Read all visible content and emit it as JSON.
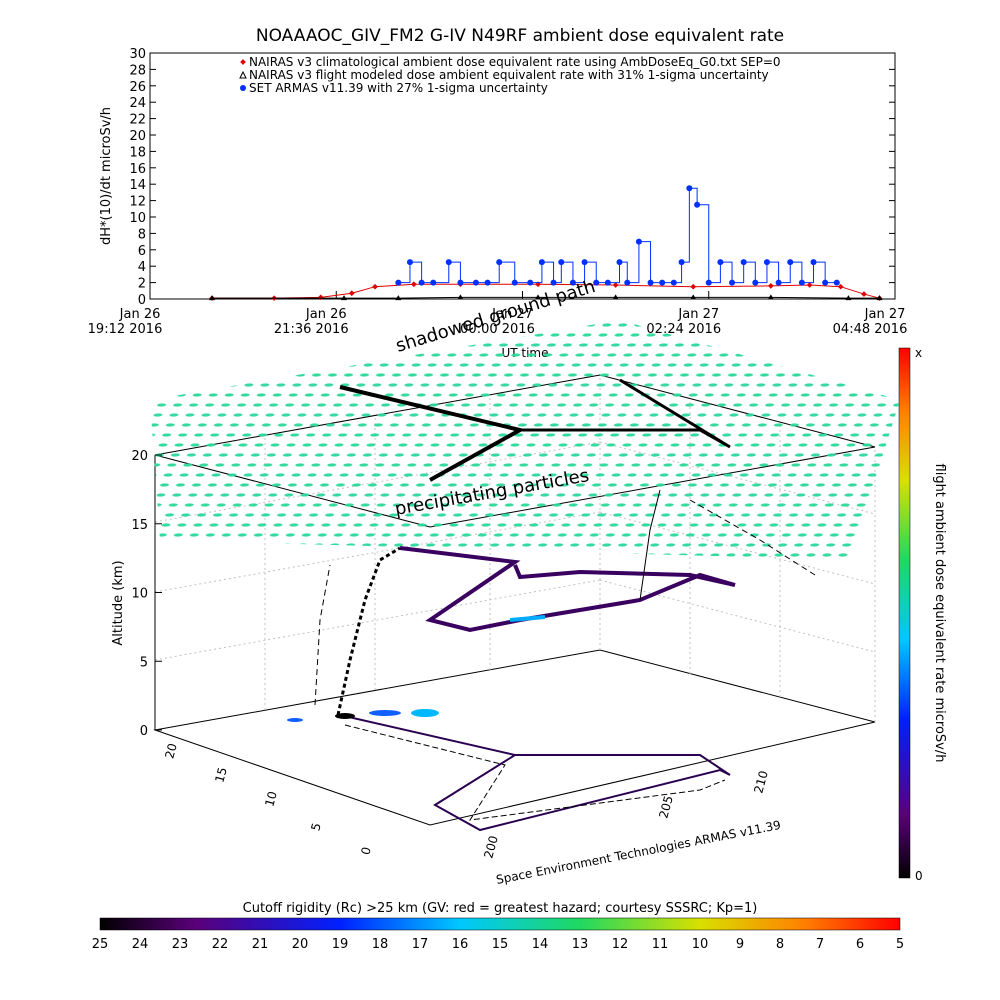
{
  "chart_data": [
    {
      "type": "line",
      "title": "NOAAAOC_GIV_FM2 G-IV    N49RF  ambient dose equivalent rate",
      "xlabel": "UT time",
      "ylabel": "dH*(10)/dt microSv/h",
      "ylim": [
        0,
        30
      ],
      "yticks": [
        0,
        2,
        4,
        6,
        8,
        10,
        12,
        14,
        16,
        18,
        20,
        22,
        24,
        26,
        28,
        30
      ],
      "xticks": [
        {
          "date": "Jan 26",
          "time": "19:12 2016"
        },
        {
          "date": "Jan 26",
          "time": "21:36 2016"
        },
        {
          "date": "Jan 27",
          "time": "00:00 2016"
        },
        {
          "date": "Jan 27",
          "time": "02:24 2016"
        },
        {
          "date": "Jan 27",
          "time": "04:48 2016"
        }
      ],
      "x_unit": "hours since Jan 26 19:12",
      "legend_position": "top-center",
      "series": [
        {
          "name": "NAIRAS v3 climatological ambient dose equivalent rate using AmbDoseEq_G0.txt SEP=0",
          "color": "#e00000",
          "marker": "diamond",
          "x": [
            0.8,
            1.6,
            2.2,
            2.6,
            2.9,
            3.4,
            4.0,
            5.0,
            6.0,
            7.0,
            8.0,
            8.5,
            8.9,
            9.2,
            9.4
          ],
          "values": [
            0.1,
            0.1,
            0.2,
            0.7,
            1.5,
            1.8,
            1.8,
            1.8,
            1.7,
            1.5,
            1.6,
            1.7,
            1.5,
            0.6,
            0.1
          ]
        },
        {
          "name": "NAIRAS v3 flight modeled dose ambient equivalent rate with 31% 1-sigma uncertainty",
          "color": "#000000",
          "marker": "triangle",
          "x": [
            0.8,
            2.5,
            3.2,
            4.0,
            5.0,
            6.0,
            7.0,
            8.0,
            9.0,
            9.4
          ],
          "values": [
            0.1,
            0.1,
            0.1,
            0.2,
            0.2,
            0.2,
            0.2,
            0.2,
            0.1,
            0.1
          ]
        },
        {
          "name": "SET ARMAS v11.39 with 27% 1-sigma uncertainty",
          "color": "#0030ff",
          "marker": "circle",
          "x": [
            3.2,
            3.35,
            3.5,
            3.65,
            3.85,
            4.0,
            4.2,
            4.35,
            4.5,
            4.7,
            4.9,
            5.05,
            5.2,
            5.3,
            5.45,
            5.6,
            5.75,
            5.9,
            6.05,
            6.15,
            6.3,
            6.45,
            6.6,
            6.75,
            6.85,
            6.95,
            7.05,
            7.2,
            7.35,
            7.5,
            7.65,
            7.8,
            7.95,
            8.1,
            8.25,
            8.4,
            8.55,
            8.7,
            8.85
          ],
          "values": [
            2,
            4.5,
            2,
            2,
            4.5,
            2,
            2,
            2,
            4.5,
            2,
            2,
            4.5,
            2,
            4.5,
            2,
            4.5,
            2,
            2,
            4.5,
            2,
            7,
            2,
            2,
            2,
            4.5,
            13.5,
            11.5,
            2,
            4.5,
            2,
            4.5,
            2,
            4.5,
            2,
            4.5,
            2,
            4.5,
            2,
            2
          ]
        }
      ]
    },
    {
      "type": "scatter",
      "subtype": "3d-flight-track",
      "zlabel": "Altitude (km)",
      "zticks": [
        0,
        5,
        10,
        15,
        20
      ],
      "xticks": [
        200,
        205,
        210
      ],
      "yticks": [
        0,
        5,
        10,
        15,
        20
      ],
      "credit": "Space Environment Technologies ARMAS v11.39",
      "annotations": [
        "shadowed ground path",
        "precipitating particles"
      ],
      "colorbar_right": {
        "label": "flight ambient dose equivalent rate microSv/h",
        "top_label": "x",
        "bottom_label": "0"
      },
      "colorbar_bottom": {
        "label": "Cutoff rigidity (Rc) >25 km (GV: red = greatest hazard; courtesy SSSRC; Kp=1)",
        "ticks": [
          25,
          24,
          23,
          22,
          21,
          20,
          19,
          18,
          17,
          16,
          15,
          14,
          13,
          12,
          11,
          10,
          9,
          8,
          7,
          6,
          5
        ]
      }
    }
  ]
}
